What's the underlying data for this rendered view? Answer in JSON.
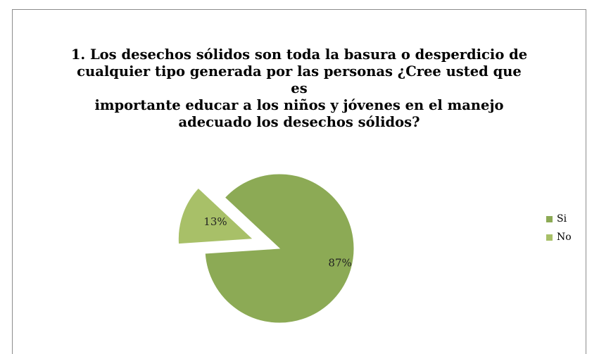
{
  "chart_data": {
    "type": "pie",
    "title": "1. Los desechos sólidos son toda la basura o desperdicio de cualquier tipo generada por las personas ¿Cree usted que es importante educar a los niños y jóvenes en el manejo adecuado los desechos sólidos?",
    "title_lines": [
      "1. Los desechos sólidos son toda la basura o desperdicio de",
      "cualquier tipo generada por las personas ¿Cree usted que es",
      "importante educar a los niños y jóvenes en el manejo",
      "adecuado los desechos sólidos?"
    ],
    "categories": [
      "Si",
      "No"
    ],
    "values": [
      87,
      13
    ],
    "data_labels": [
      "87%",
      "13%"
    ],
    "exploded": [
      false,
      true
    ],
    "colors": [
      "#8caa55",
      "#a8c068"
    ],
    "legend_position": "right"
  }
}
